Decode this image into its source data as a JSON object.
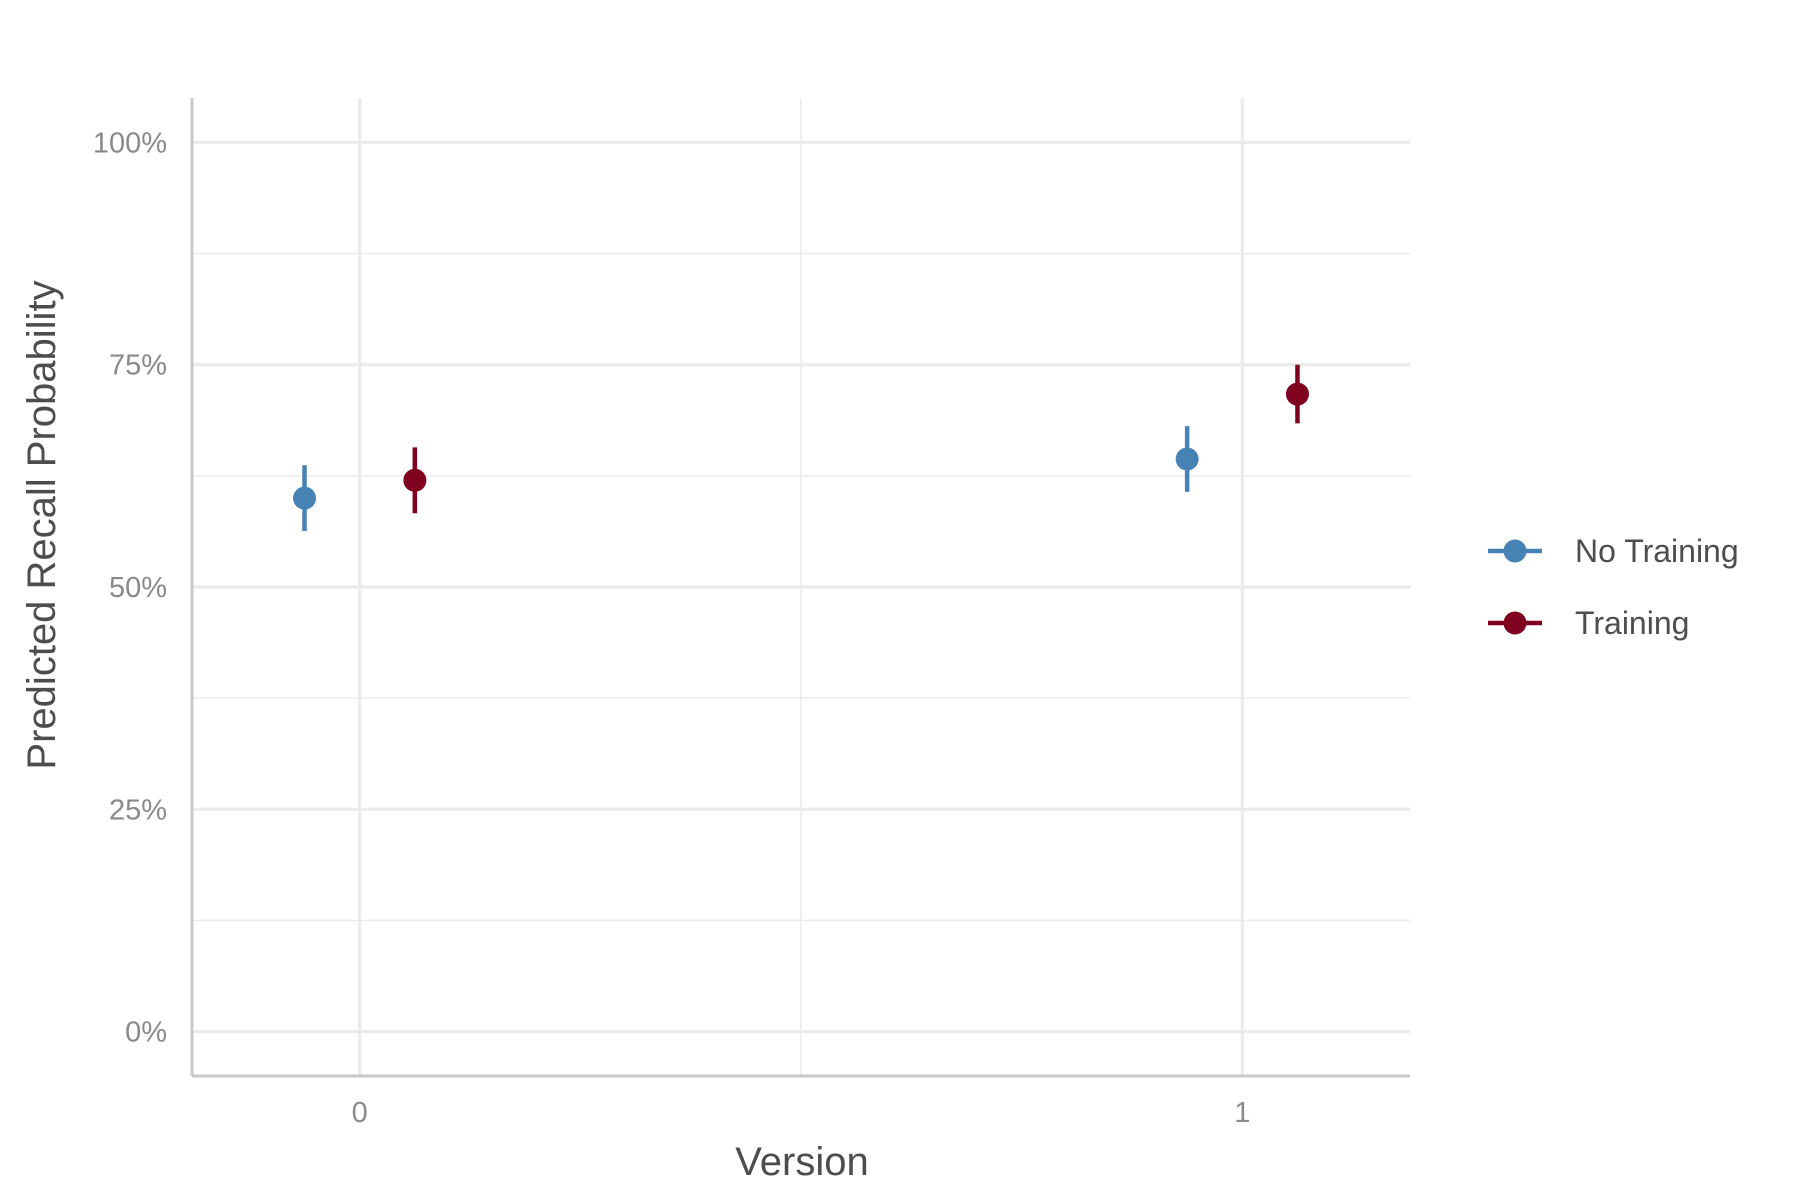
{
  "chart_data": {
    "type": "scatter",
    "xlabel": "Version",
    "ylabel": "Predicted Recall Probability",
    "x_categories": [
      "0",
      "1"
    ],
    "xlim": [
      -0.19,
      1.19
    ],
    "ylim": [
      -0.05,
      1.05
    ],
    "y_ticks": [
      {
        "value": 0,
        "label": "0%"
      },
      {
        "value": 0.25,
        "label": "25%"
      },
      {
        "value": 0.5,
        "label": "50%"
      },
      {
        "value": 0.75,
        "label": "75%"
      },
      {
        "value": 1,
        "label": "100%"
      }
    ],
    "y_minor_ticks": [
      0.125,
      0.375,
      0.625,
      0.875
    ],
    "x_minor_ticks": [
      0.5
    ],
    "grid": true,
    "legend_position": "right",
    "series": [
      {
        "name": "No Training",
        "color": "#4682B4",
        "dodge": -0.0625,
        "points": [
          {
            "x": 0,
            "y": 0.6,
            "lower": 0.563,
            "upper": 0.637
          },
          {
            "x": 1,
            "y": 0.644,
            "lower": 0.607,
            "upper": 0.681
          }
        ]
      },
      {
        "name": "Training",
        "color": "#800020",
        "dodge": 0.0625,
        "points": [
          {
            "x": 0,
            "y": 0.62,
            "lower": 0.583,
            "upper": 0.657
          },
          {
            "x": 1,
            "y": 0.717,
            "lower": 0.684,
            "upper": 0.75
          }
        ]
      }
    ]
  }
}
